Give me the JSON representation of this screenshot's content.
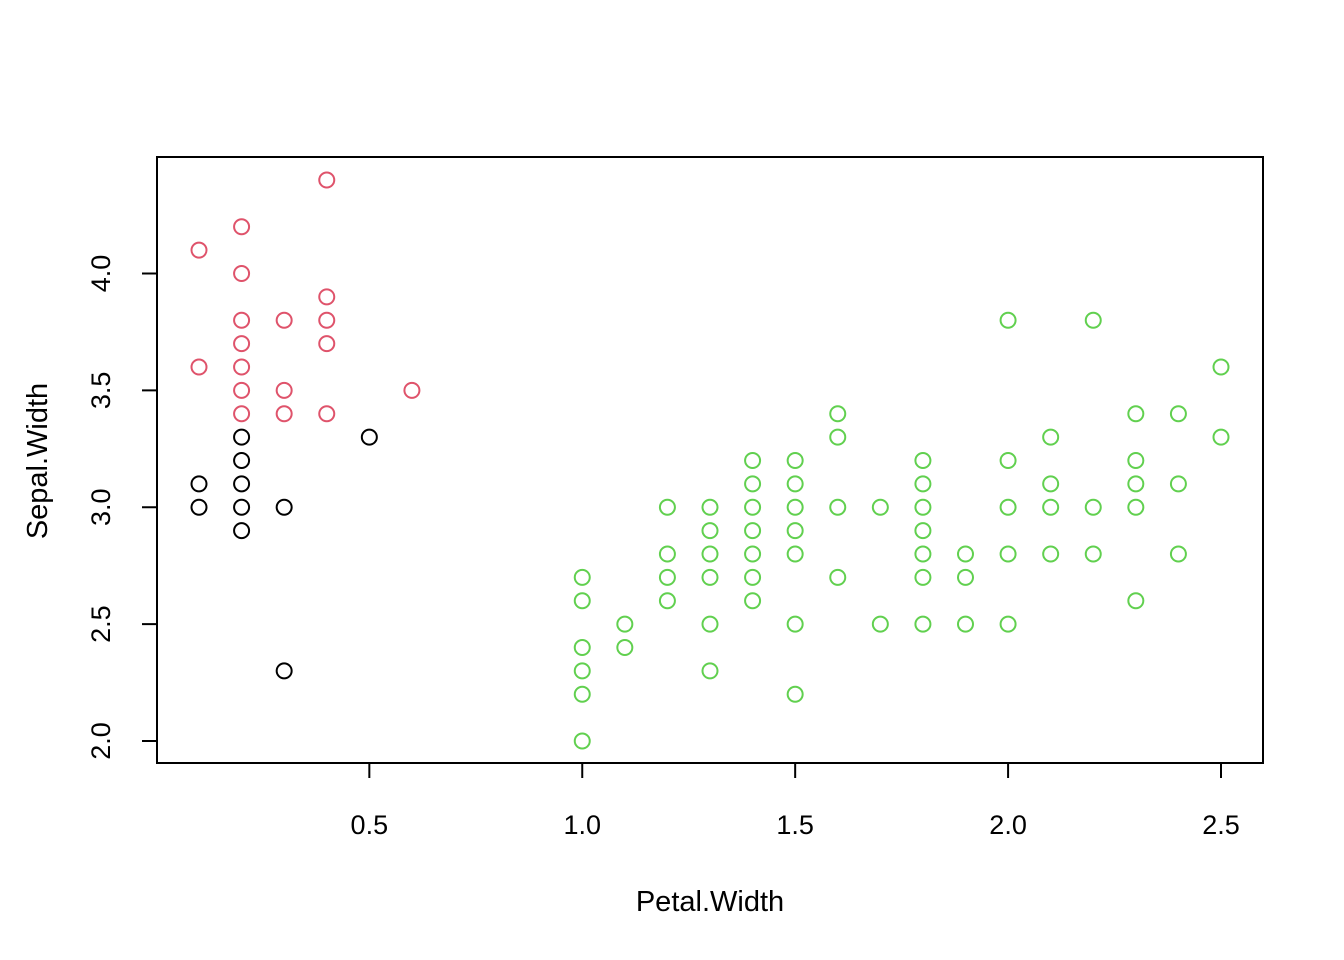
{
  "chart_data": {
    "type": "scatter",
    "title": "",
    "xlabel": "Petal.Width",
    "ylabel": "Sepal.Width",
    "xlim": [
      0.1,
      2.5
    ],
    "ylim": [
      2.0,
      4.4
    ],
    "x_ticks": [
      "0.5",
      "1.0",
      "1.5",
      "2.0",
      "2.5"
    ],
    "y_ticks": [
      "2.0",
      "2.5",
      "3.0",
      "3.5",
      "4.0"
    ],
    "grid": false,
    "legend": "none",
    "series": [
      {
        "color": "#000000",
        "points": [
          [
            0.1,
            3.0
          ],
          [
            0.1,
            3.1
          ],
          [
            0.2,
            2.9
          ],
          [
            0.2,
            3.0
          ],
          [
            0.2,
            3.1
          ],
          [
            0.2,
            3.2
          ],
          [
            0.2,
            3.3
          ],
          [
            0.3,
            2.3
          ],
          [
            0.3,
            3.0
          ],
          [
            0.5,
            3.3
          ]
        ]
      },
      {
        "color": "#DF536B",
        "points": [
          [
            0.1,
            3.6
          ],
          [
            0.1,
            4.1
          ],
          [
            0.2,
            3.4
          ],
          [
            0.2,
            3.5
          ],
          [
            0.2,
            3.6
          ],
          [
            0.2,
            3.7
          ],
          [
            0.2,
            3.8
          ],
          [
            0.2,
            4.0
          ],
          [
            0.2,
            4.2
          ],
          [
            0.3,
            3.4
          ],
          [
            0.3,
            3.5
          ],
          [
            0.3,
            3.8
          ],
          [
            0.4,
            3.4
          ],
          [
            0.4,
            3.7
          ],
          [
            0.4,
            3.8
          ],
          [
            0.4,
            3.9
          ],
          [
            0.4,
            4.4
          ],
          [
            0.6,
            3.5
          ]
        ]
      },
      {
        "color": "#61D04F",
        "points": [
          [
            1.0,
            2.0
          ],
          [
            1.0,
            2.2
          ],
          [
            1.0,
            2.3
          ],
          [
            1.0,
            2.4
          ],
          [
            1.0,
            2.6
          ],
          [
            1.0,
            2.7
          ],
          [
            1.1,
            2.4
          ],
          [
            1.1,
            2.5
          ],
          [
            1.2,
            2.6
          ],
          [
            1.2,
            2.7
          ],
          [
            1.2,
            2.8
          ],
          [
            1.2,
            3.0
          ],
          [
            1.3,
            2.3
          ],
          [
            1.3,
            2.5
          ],
          [
            1.3,
            2.7
          ],
          [
            1.3,
            2.8
          ],
          [
            1.3,
            2.9
          ],
          [
            1.3,
            3.0
          ],
          [
            1.4,
            2.6
          ],
          [
            1.4,
            2.7
          ],
          [
            1.4,
            2.8
          ],
          [
            1.4,
            2.9
          ],
          [
            1.4,
            3.0
          ],
          [
            1.4,
            3.1
          ],
          [
            1.4,
            3.2
          ],
          [
            1.5,
            2.2
          ],
          [
            1.5,
            2.5
          ],
          [
            1.5,
            2.8
          ],
          [
            1.5,
            2.9
          ],
          [
            1.5,
            3.0
          ],
          [
            1.5,
            3.1
          ],
          [
            1.5,
            3.2
          ],
          [
            1.6,
            2.7
          ],
          [
            1.6,
            3.0
          ],
          [
            1.6,
            3.3
          ],
          [
            1.6,
            3.4
          ],
          [
            1.7,
            2.5
          ],
          [
            1.7,
            3.0
          ],
          [
            1.8,
            2.5
          ],
          [
            1.8,
            2.7
          ],
          [
            1.8,
            2.8
          ],
          [
            1.8,
            2.9
          ],
          [
            1.8,
            3.0
          ],
          [
            1.8,
            3.1
          ],
          [
            1.8,
            3.2
          ],
          [
            1.9,
            2.5
          ],
          [
            1.9,
            2.7
          ],
          [
            1.9,
            2.8
          ],
          [
            2.0,
            2.5
          ],
          [
            2.0,
            2.8
          ],
          [
            2.0,
            3.0
          ],
          [
            2.0,
            3.2
          ],
          [
            2.0,
            3.8
          ],
          [
            2.1,
            2.8
          ],
          [
            2.1,
            3.0
          ],
          [
            2.1,
            3.1
          ],
          [
            2.1,
            3.3
          ],
          [
            2.2,
            2.8
          ],
          [
            2.2,
            3.0
          ],
          [
            2.2,
            3.8
          ],
          [
            2.3,
            2.6
          ],
          [
            2.3,
            3.0
          ],
          [
            2.3,
            3.1
          ],
          [
            2.3,
            3.2
          ],
          [
            2.3,
            3.4
          ],
          [
            2.4,
            2.8
          ],
          [
            2.4,
            3.1
          ],
          [
            2.4,
            3.4
          ],
          [
            2.5,
            3.3
          ],
          [
            2.5,
            3.6
          ]
        ]
      }
    ]
  }
}
